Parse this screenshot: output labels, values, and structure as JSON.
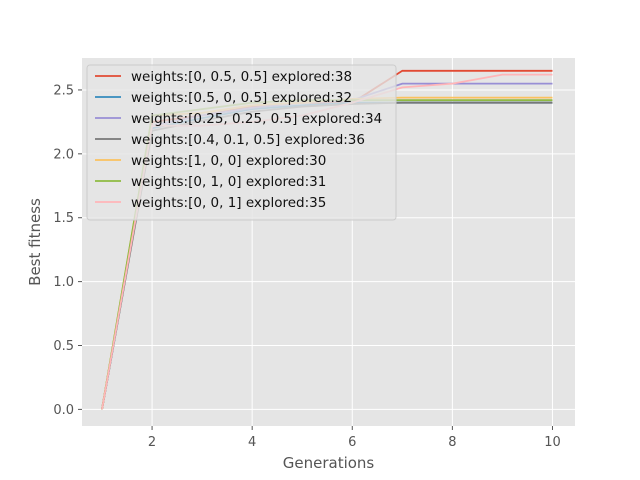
{
  "chart_data": {
    "type": "line",
    "xlabel": "Generations",
    "ylabel": "Best fitness",
    "xlim": [
      0.6,
      10.45
    ],
    "ylim": [
      -0.13,
      2.75
    ],
    "xticks": [
      2,
      4,
      6,
      8,
      10
    ],
    "yticks": [
      0.0,
      0.5,
      1.0,
      1.5,
      2.0,
      2.5
    ],
    "grid": true,
    "legend_position": "top-left",
    "series": [
      {
        "name": "weights:[0, 0.5, 0.5] explored:38",
        "color": "#E24A33",
        "x": [
          1,
          2,
          3,
          4,
          5,
          6,
          7,
          8,
          9,
          10
        ],
        "y": [
          0.0,
          2.25,
          2.3,
          2.37,
          2.4,
          2.4,
          2.65,
          2.65,
          2.65,
          2.65
        ]
      },
      {
        "name": "weights:[0.5, 0, 0.5] explored:32",
        "color": "#348ABD",
        "x": [
          1,
          2,
          3,
          4,
          5,
          6,
          7,
          8,
          9,
          10
        ],
        "y": [
          0.0,
          2.2,
          2.28,
          2.35,
          2.38,
          2.4,
          2.4,
          2.4,
          2.4,
          2.4
        ]
      },
      {
        "name": "weights:[0.25, 0.25, 0.5] explored:34",
        "color": "#988ED5",
        "x": [
          1,
          2,
          3,
          4,
          5,
          6,
          7,
          8,
          9,
          10
        ],
        "y": [
          0.0,
          2.22,
          2.3,
          2.36,
          2.4,
          2.42,
          2.55,
          2.55,
          2.55,
          2.55
        ]
      },
      {
        "name": "weights:[0.4, 0.1, 0.5] explored:36",
        "color": "#777777",
        "x": [
          1,
          2,
          3,
          4,
          5,
          6,
          7,
          8,
          9,
          10
        ],
        "y": [
          0.0,
          2.18,
          2.26,
          2.33,
          2.37,
          2.39,
          2.4,
          2.4,
          2.4,
          2.4
        ]
      },
      {
        "name": "weights:[1, 0, 0] explored:30",
        "color": "#FBC15E",
        "x": [
          1,
          2,
          3,
          4,
          5,
          6,
          7,
          8,
          9,
          10
        ],
        "y": [
          0.0,
          2.3,
          2.32,
          2.38,
          2.4,
          2.43,
          2.44,
          2.44,
          2.44,
          2.44
        ]
      },
      {
        "name": "weights:[0, 1, 0] explored:31",
        "color": "#8EBA42",
        "x": [
          1,
          2,
          3,
          4,
          5,
          6,
          7,
          8,
          9,
          10
        ],
        "y": [
          0.0,
          2.3,
          2.35,
          2.4,
          2.42,
          2.42,
          2.42,
          2.42,
          2.42,
          2.42
        ]
      },
      {
        "name": "weights:[0, 0, 1] explored:35",
        "color": "#FFB5B8",
        "x": [
          1,
          2,
          3,
          4,
          5,
          6,
          7,
          8,
          9,
          10
        ],
        "y": [
          0.0,
          2.22,
          2.22,
          2.25,
          2.3,
          2.4,
          2.52,
          2.55,
          2.62,
          2.62
        ]
      }
    ]
  }
}
